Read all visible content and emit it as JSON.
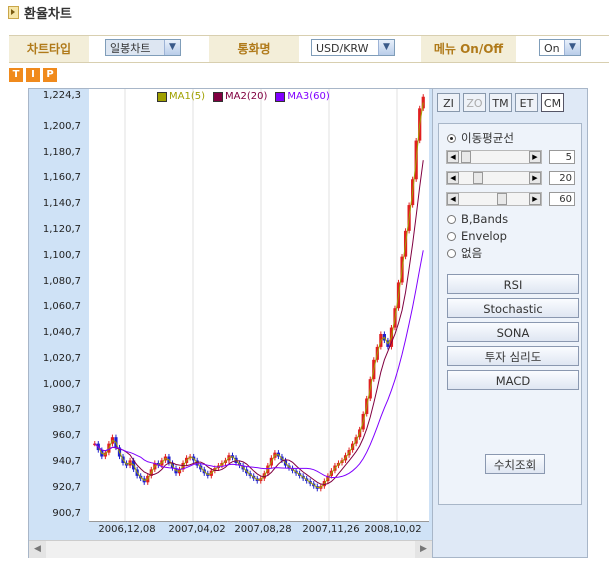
{
  "page": {
    "title": "환율차트"
  },
  "controls": {
    "chart_type_label": "차트타입",
    "chart_type_value": "일봉차트",
    "currency_label": "통화명",
    "currency_value": "USD/KRW",
    "menu_label": "메뉴 On/Off",
    "menu_value": "On"
  },
  "tip": [
    "T",
    "I",
    "P"
  ],
  "legend": [
    {
      "label": "MA1(5)",
      "color": "#a0a000"
    },
    {
      "label": "MA2(20)",
      "color": "#800040"
    },
    {
      "label": "MA3(60)",
      "color": "#8000ff"
    }
  ],
  "zoom_buttons": [
    "ZI",
    "ZO",
    "TM",
    "ET",
    "CM"
  ],
  "panel": {
    "moving_avg_label": "이동평균선",
    "sliders": [
      "5",
      "20",
      "60"
    ],
    "bbands_label": "B,Bands",
    "envelop_label": "Envelop",
    "none_label": "없음",
    "indicators": [
      "RSI",
      "Stochastic",
      "SONA",
      "투자 심리도",
      "MACD"
    ],
    "calc_label": "수치조회"
  },
  "chart_data": {
    "type": "candlestick",
    "y_ticks": [
      "1,224,3",
      "1,200,7",
      "1,180,7",
      "1,160,7",
      "1,140,7",
      "1,120,7",
      "1,100,7",
      "1,080,7",
      "1,060,7",
      "1,040,7",
      "1,020,7",
      "1,000,7",
      "980,7",
      "960,7",
      "940,7",
      "920,7",
      "900,7"
    ],
    "x_ticks": [
      "2006,12,08",
      "2007,04,02",
      "2007,08,28",
      "2007,11,26",
      "2008,10,02"
    ],
    "ylim": [
      895,
      1230
    ],
    "series": [
      {
        "name": "MA1(5)",
        "color": "#a0a000"
      },
      {
        "name": "MA2(20)",
        "color": "#800040"
      },
      {
        "name": "MA3(60)",
        "color": "#8000ff"
      }
    ],
    "close": [
      955,
      950,
      945,
      948,
      955,
      960,
      952,
      945,
      940,
      938,
      942,
      935,
      930,
      928,
      925,
      930,
      935,
      940,
      938,
      942,
      945,
      940,
      936,
      932,
      935,
      940,
      944,
      945,
      942,
      938,
      935,
      932,
      930,
      934,
      936,
      938,
      940,
      942,
      946,
      944,
      940,
      938,
      935,
      932,
      930,
      928,
      926,
      928,
      932,
      938,
      944,
      948,
      945,
      942,
      938,
      936,
      934,
      932,
      930,
      928,
      926,
      924,
      922,
      920,
      922,
      926,
      930,
      934,
      938,
      940,
      942,
      946,
      950,
      955,
      960,
      966,
      978,
      990,
      1005,
      1020,
      1030,
      1040,
      1035,
      1030,
      1045,
      1060,
      1080,
      1100,
      1120,
      1140,
      1160,
      1190,
      1215,
      1224
    ]
  }
}
